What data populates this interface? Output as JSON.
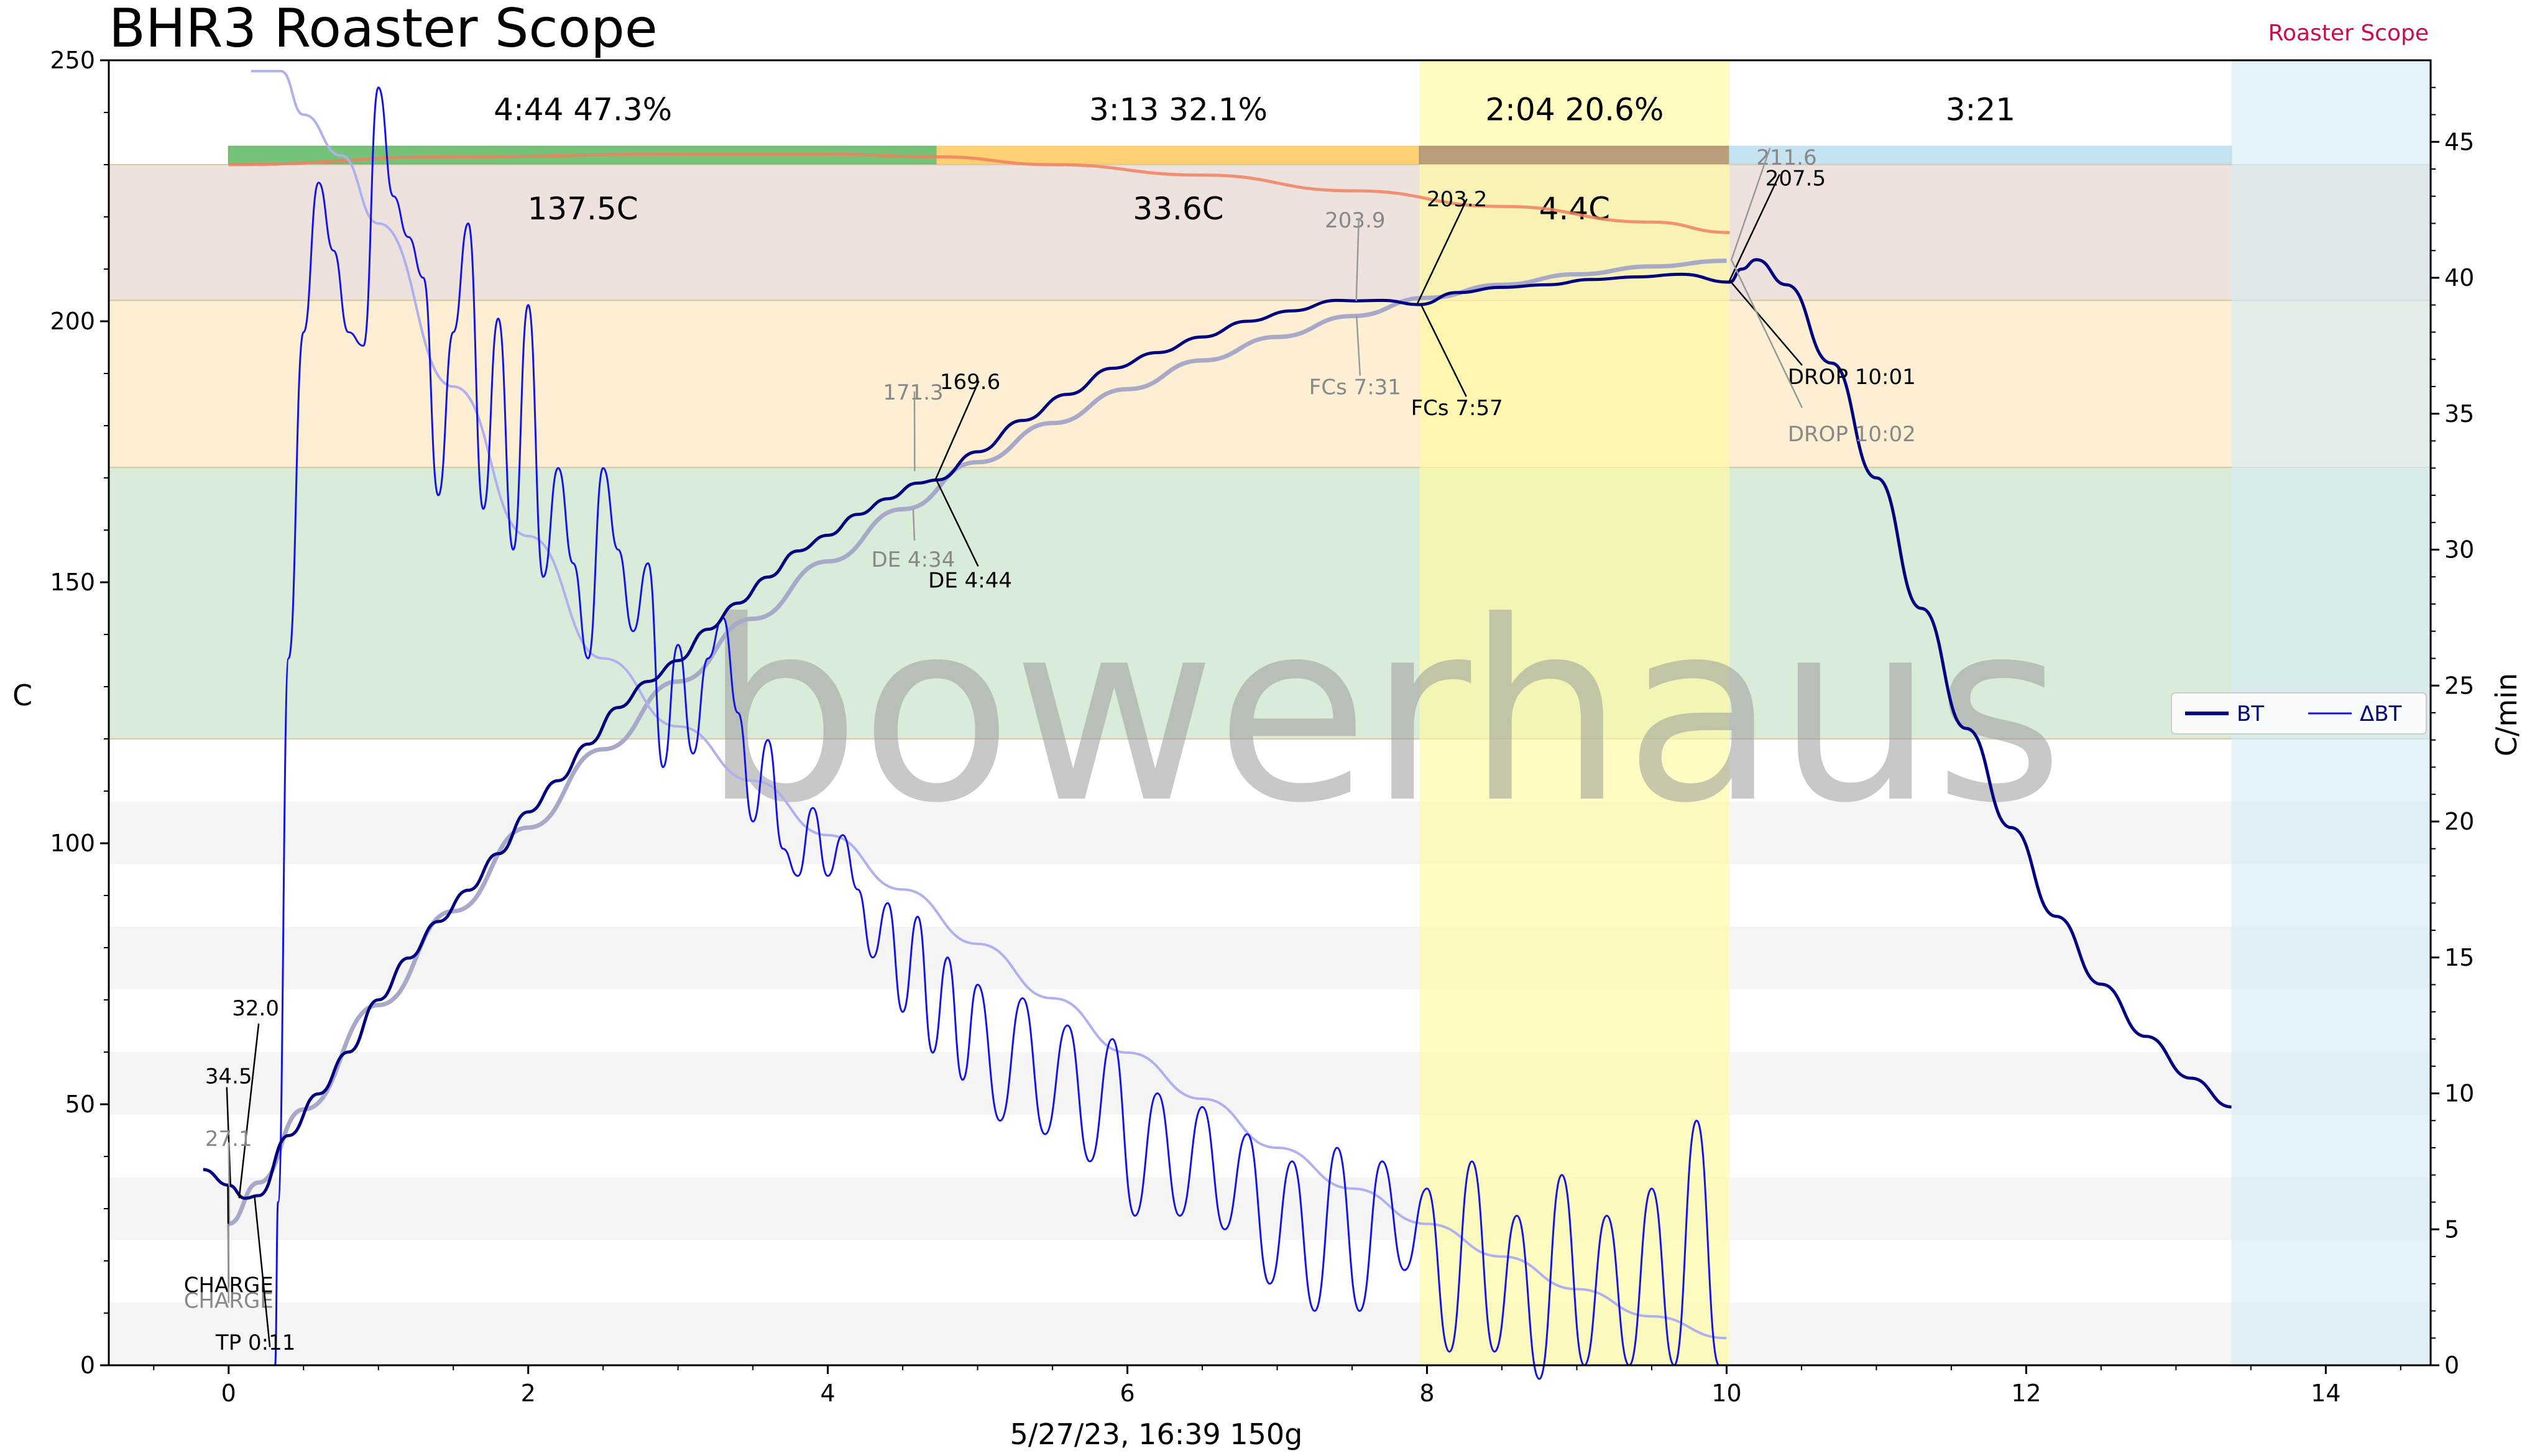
{
  "title": "BHR3 Roaster Scope",
  "brand": "Roaster Scope",
  "subtitle": "5/27/23, 16:39   150g",
  "watermark": "bowerhaus",
  "chart_data": {
    "type": "line",
    "title": "BHR3 Roaster Scope",
    "xlabel": "5/27/23, 16:39   150g",
    "ylabel": "C",
    "y2label": "C/min",
    "xlim": [
      -0.8,
      14.7
    ],
    "ylim": [
      0,
      250
    ],
    "y2lim": [
      0,
      48
    ],
    "x_ticks": [
      0,
      2,
      4,
      6,
      8,
      10,
      12,
      14
    ],
    "y_ticks": [
      0,
      50,
      100,
      150,
      200,
      250
    ],
    "y2_ticks": [
      0,
      5,
      10,
      15,
      20,
      25,
      30,
      35,
      40,
      45
    ],
    "grid": false,
    "legend": {
      "position": "right",
      "entries": [
        "BT",
        "ΔBT"
      ]
    },
    "colors": {
      "bt": "#000080",
      "dbt": "#1414e6",
      "bt_reference": "#a8a8c8",
      "dbt_reference": "#b0b0f0",
      "phase_drying": "#66bb6a",
      "phase_maillard": "#ffcc66",
      "phase_development": "#b29575",
      "phase_cooling": "#bfe0ee",
      "band_top": "#e9dbd4",
      "band_mid": "#fdebc8",
      "band_low": "#cfe6cf",
      "dev_highlight": "#fffaa0",
      "cooling_highlight": "#d6ecf4",
      "et_curve": "#f08060",
      "brand_red": "#cc0a4f"
    },
    "phases": [
      {
        "label": "4:44  47.3%",
        "temp_rise": "137.5C",
        "start": 0.0,
        "end": 4.73
      },
      {
        "label": "3:13  32.1%",
        "temp_rise": "33.6C",
        "start": 4.73,
        "end": 7.95
      },
      {
        "label": "2:04  20.6%",
        "temp_rise": "4.4C",
        "start": 7.95,
        "end": 10.02
      },
      {
        "label": "3:21",
        "temp_rise": "",
        "start": 10.02,
        "end": 13.37
      }
    ],
    "temperature_bands": [
      {
        "name": "band_top",
        "from": 204,
        "to": 230
      },
      {
        "name": "band_mid",
        "from": 172,
        "to": 204
      },
      {
        "name": "band_low",
        "from": 120,
        "to": 172
      }
    ],
    "background_stripes": [
      [
        96,
        108
      ],
      [
        72,
        84
      ],
      [
        48,
        60
      ],
      [
        24,
        36
      ],
      [
        0,
        12
      ]
    ],
    "highlights": [
      {
        "name": "dev_highlight",
        "from_x": 7.95,
        "to_x": 10.02
      },
      {
        "name": "cooling_highlight",
        "from_x": 13.37,
        "to_x": 14.7
      }
    ],
    "series": [
      {
        "name": "BT",
        "axis": "left",
        "x": [
          -0.17,
          0.0,
          0.11,
          0.2,
          0.4,
          0.6,
          0.8,
          1.0,
          1.2,
          1.4,
          1.6,
          1.8,
          2.0,
          2.2,
          2.4,
          2.6,
          2.8,
          3.0,
          3.2,
          3.4,
          3.6,
          3.8,
          4.0,
          4.2,
          4.4,
          4.6,
          4.73,
          5.0,
          5.3,
          5.6,
          5.9,
          6.2,
          6.5,
          6.8,
          7.1,
          7.4,
          7.52,
          7.7,
          7.95,
          8.2,
          8.5,
          8.8,
          9.1,
          9.4,
          9.7,
          10.02,
          10.1,
          10.2,
          10.4,
          10.7,
          11.0,
          11.3,
          11.6,
          11.9,
          12.2,
          12.5,
          12.8,
          13.1,
          13.37
        ],
        "y": [
          37.5,
          34.5,
          32.0,
          32.5,
          44.0,
          52.0,
          60.0,
          70.0,
          78.0,
          85.0,
          91.0,
          98.0,
          106.0,
          112.0,
          119.0,
          126.0,
          131.0,
          135.0,
          141.0,
          146.0,
          151.0,
          156.0,
          159.0,
          163.0,
          166.0,
          169.0,
          169.6,
          175.0,
          181.0,
          186.0,
          191.0,
          194.0,
          197.0,
          200.0,
          202.0,
          204.0,
          203.9,
          204.0,
          203.2,
          205.5,
          206.5,
          207.0,
          208.0,
          208.5,
          209.0,
          207.5,
          210.0,
          211.8,
          207.0,
          192.0,
          170.0,
          145.0,
          122.0,
          103.0,
          86.0,
          73.0,
          63.0,
          55.0,
          49.5
        ]
      },
      {
        "name": "ΔBT",
        "axis": "right",
        "x": [
          0.31,
          0.33,
          0.4,
          0.5,
          0.6,
          0.7,
          0.8,
          0.9,
          1.0,
          1.1,
          1.2,
          1.3,
          1.4,
          1.5,
          1.6,
          1.7,
          1.8,
          1.9,
          2.0,
          2.1,
          2.2,
          2.3,
          2.4,
          2.5,
          2.6,
          2.7,
          2.8,
          2.9,
          3.0,
          3.1,
          3.2,
          3.3,
          3.4,
          3.5,
          3.6,
          3.7,
          3.8,
          3.9,
          4.0,
          4.1,
          4.2,
          4.3,
          4.4,
          4.5,
          4.6,
          4.7,
          4.8,
          4.9,
          5.0,
          5.15,
          5.3,
          5.45,
          5.6,
          5.75,
          5.9,
          6.05,
          6.2,
          6.35,
          6.5,
          6.65,
          6.8,
          6.95,
          7.1,
          7.25,
          7.4,
          7.55,
          7.7,
          7.85,
          8.0,
          8.15,
          8.3,
          8.45,
          8.6,
          8.75,
          8.9,
          9.05,
          9.2,
          9.35,
          9.5,
          9.65,
          9.8,
          9.95,
          10.0
        ],
        "y": [
          0.0,
          6.0,
          26.0,
          38.0,
          43.5,
          41.0,
          38.0,
          37.5,
          47.0,
          43.0,
          41.5,
          40.0,
          32.0,
          38.0,
          42.0,
          31.5,
          38.5,
          30.0,
          39.0,
          29.0,
          33.0,
          29.5,
          26.0,
          33.0,
          30.0,
          27.0,
          29.5,
          22.0,
          26.5,
          22.5,
          26.0,
          27.5,
          24.0,
          20.0,
          23.0,
          19.0,
          18.0,
          20.5,
          18.0,
          19.5,
          17.5,
          15.0,
          17.0,
          13.0,
          16.5,
          11.5,
          15.0,
          10.5,
          14.0,
          9.0,
          13.5,
          8.5,
          12.5,
          7.5,
          12.0,
          5.5,
          10.0,
          5.5,
          9.5,
          5.0,
          8.5,
          3.0,
          7.5,
          2.0,
          8.0,
          2.0,
          7.5,
          3.5,
          6.5,
          0.5,
          7.5,
          0.5,
          5.5,
          -0.5,
          7.0,
          0.0,
          5.5,
          0.0,
          6.5,
          0.0,
          9.0,
          0.0,
          0.0
        ]
      },
      {
        "name": "BT reference",
        "axis": "left",
        "x": [
          0.0,
          0.2,
          0.5,
          1.0,
          1.5,
          2.0,
          2.5,
          3.0,
          3.5,
          4.0,
          4.5,
          5.0,
          5.5,
          6.0,
          6.5,
          7.0,
          7.5,
          8.0,
          8.5,
          9.0,
          9.5,
          10.0
        ],
        "y": [
          27.1,
          35.0,
          49.0,
          69.0,
          87.0,
          103.0,
          118.0,
          131.0,
          143.0,
          154.0,
          164.0,
          173.0,
          180.5,
          187.0,
          192.5,
          197.0,
          201.0,
          204.5,
          207.0,
          209.0,
          210.5,
          211.6
        ]
      },
      {
        "name": "ΔBT reference",
        "axis": "right",
        "x": [
          0.15,
          0.35,
          0.5,
          0.75,
          1.0,
          1.5,
          2.0,
          2.5,
          3.0,
          3.5,
          4.0,
          4.5,
          5.0,
          5.5,
          6.0,
          6.5,
          7.0,
          7.5,
          8.0,
          8.5,
          9.0,
          9.5,
          10.0
        ],
        "y": [
          47.6,
          47.6,
          46.0,
          44.5,
          42.0,
          36.0,
          30.5,
          26.0,
          23.5,
          21.5,
          19.5,
          17.5,
          15.5,
          13.5,
          11.5,
          9.8,
          8.0,
          6.5,
          5.2,
          4.0,
          2.8,
          1.8,
          1.0
        ]
      },
      {
        "name": "ET",
        "axis": "left",
        "x": [
          0.0,
          1.5,
          3.0,
          4.0,
          4.73,
          5.5,
          6.5,
          7.5,
          8.5,
          9.5,
          10.02
        ],
        "y": [
          230.0,
          231.5,
          232.0,
          232.0,
          231.5,
          230.0,
          228.0,
          225.0,
          222.0,
          219.0,
          217.0
        ]
      }
    ],
    "annotations": [
      {
        "text": "34.5",
        "value": 34.5,
        "time": 0.0,
        "kind": "temp",
        "ref": false
      },
      {
        "text": "32.0",
        "value": 32.0,
        "time": 0.11,
        "kind": "temp",
        "ref": false
      },
      {
        "text": "27.1",
        "value": 27.1,
        "time": 0.0,
        "kind": "temp",
        "ref": true
      },
      {
        "text": "CHARGE",
        "time": 0.0,
        "kind": "event",
        "ref": false
      },
      {
        "text": "CHARGE",
        "time": 0.0,
        "kind": "event",
        "ref": true
      },
      {
        "text": "TP 0:11",
        "time": 0.18,
        "kind": "event",
        "ref": false
      },
      {
        "text": "169.6",
        "value": 169.6,
        "time": 4.73,
        "kind": "temp",
        "ref": false
      },
      {
        "text": "171.3",
        "value": 171.3,
        "time": 4.57,
        "kind": "temp",
        "ref": true
      },
      {
        "text": "DE 4:44",
        "time": 4.73,
        "kind": "event",
        "ref": false
      },
      {
        "text": "DE 4:34",
        "time": 4.57,
        "kind": "event",
        "ref": true
      },
      {
        "text": "203.2",
        "value": 203.2,
        "time": 7.95,
        "kind": "temp",
        "ref": false
      },
      {
        "text": "203.9",
        "value": 203.9,
        "time": 7.52,
        "kind": "temp",
        "ref": true
      },
      {
        "text": "FCs 7:57",
        "time": 7.95,
        "kind": "event",
        "ref": false
      },
      {
        "text": "FCs 7:31",
        "time": 7.52,
        "kind": "event",
        "ref": true
      },
      {
        "text": "207.5",
        "value": 207.5,
        "time": 10.02,
        "kind": "temp",
        "ref": false
      },
      {
        "text": "211.6",
        "value": 211.6,
        "time": 10.03,
        "kind": "temp",
        "ref": true
      },
      {
        "text": "DROP 10:01",
        "time": 10.02,
        "kind": "event",
        "ref": false
      },
      {
        "text": "DROP 10:02",
        "time": 10.03,
        "kind": "event",
        "ref": true
      }
    ]
  }
}
